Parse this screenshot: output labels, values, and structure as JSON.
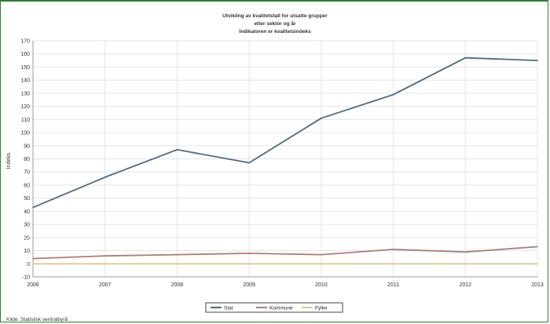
{
  "chart_data": {
    "type": "line",
    "title_lines": [
      "Utvikling av kvalitetstall for utsatte grupper",
      "etter sektor og år",
      "Indikatoren er kvalitetsindeks"
    ],
    "xlabel": "",
    "ylabel": "Indeks",
    "x": [
      "2006",
      "2007",
      "2008",
      "2009",
      "2010",
      "2011",
      "2012",
      "2013"
    ],
    "ylim": [
      -10,
      170
    ],
    "yticks": [
      -10,
      0,
      10,
      20,
      30,
      40,
      50,
      60,
      70,
      80,
      90,
      100,
      110,
      120,
      130,
      140,
      150,
      160,
      170
    ],
    "grid": true,
    "legend_position": "bottom",
    "series": [
      {
        "name": "Stat",
        "color": "#4a6b84",
        "values": [
          43,
          66,
          87,
          77,
          111,
          129,
          157,
          155
        ]
      },
      {
        "name": "Kommune",
        "color": "#b07c74",
        "values": [
          4,
          6,
          7,
          8,
          7,
          11,
          9,
          13
        ]
      },
      {
        "name": "Fylke",
        "color": "#e6c68c",
        "values": [
          0,
          0,
          0,
          0,
          0,
          0,
          0,
          0
        ]
      }
    ],
    "source_note": "Kilde: Statistisk sentralbyrå"
  }
}
